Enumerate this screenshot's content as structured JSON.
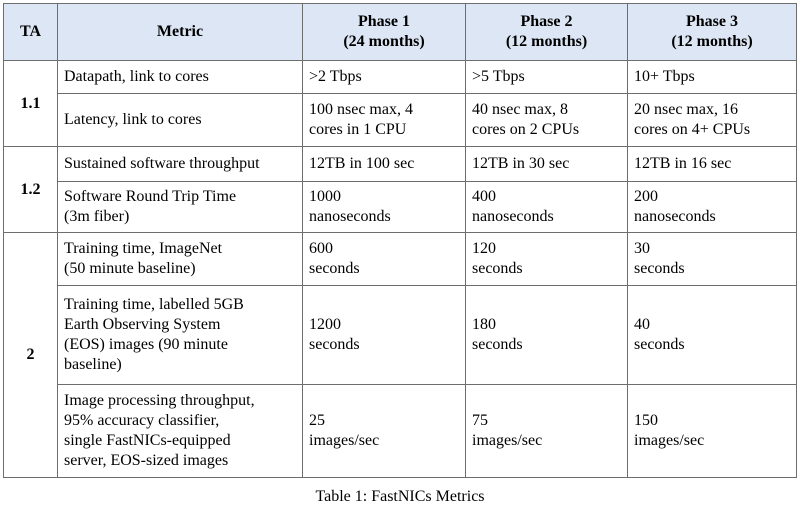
{
  "table": {
    "headers": {
      "ta": "TA",
      "metric": "Metric",
      "phase1": [
        "Phase 1",
        "(24 months)"
      ],
      "phase2": [
        "Phase 2",
        "(12 months)"
      ],
      "phase3": [
        "Phase 3",
        "(12 months)"
      ]
    },
    "groups": [
      {
        "ta": "1.1",
        "rows": [
          {
            "metric": [
              "Datapath, link to cores"
            ],
            "phase1": [
              ">2 Tbps"
            ],
            "phase2": [
              ">5 Tbps"
            ],
            "phase3": [
              "10+ Tbps"
            ]
          },
          {
            "metric": [
              "Latency, link to cores"
            ],
            "phase1": [
              "100 nsec max, 4",
              "cores in 1 CPU"
            ],
            "phase2": [
              "40 nsec max, 8",
              "cores on 2 CPUs"
            ],
            "phase3": [
              "20 nsec max, 16",
              "cores on 4+ CPUs"
            ]
          }
        ]
      },
      {
        "ta": "1.2",
        "rows": [
          {
            "metric": [
              "Sustained software throughput"
            ],
            "phase1": [
              "12TB in 100 sec"
            ],
            "phase2": [
              "12TB in 30 sec"
            ],
            "phase3": [
              "12TB in 16 sec"
            ]
          },
          {
            "metric": [
              "Software Round Trip Time",
              "(3m fiber)"
            ],
            "phase1": [
              "1000",
              "nanoseconds"
            ],
            "phase2": [
              "400",
              "nanoseconds"
            ],
            "phase3": [
              "200",
              "nanoseconds"
            ]
          }
        ]
      },
      {
        "ta": "2",
        "rows": [
          {
            "metric": [
              "Training time, ImageNet",
              "(50 minute baseline)"
            ],
            "phase1": [
              "600",
              "seconds"
            ],
            "phase2": [
              "120",
              "seconds"
            ],
            "phase3": [
              "30",
              "seconds"
            ]
          },
          {
            "metric": [
              "Training time, labelled 5GB",
              "Earth Observing System",
              "(EOS) images (90 minute",
              "baseline)"
            ],
            "phase1": [
              "1200",
              "seconds"
            ],
            "phase2": [
              "180",
              "seconds"
            ],
            "phase3": [
              "40",
              "seconds"
            ]
          },
          {
            "metric": [
              "Image processing throughput,",
              "95% accuracy classifier,",
              "single FastNICs-equipped",
              "server, EOS-sized images"
            ],
            "phase1": [
              "25",
              "images/sec"
            ],
            "phase2": [
              "75",
              "images/sec"
            ],
            "phase3": [
              "150",
              "images/sec"
            ]
          }
        ]
      }
    ]
  },
  "caption": "Table 1: FastNICs Metrics"
}
